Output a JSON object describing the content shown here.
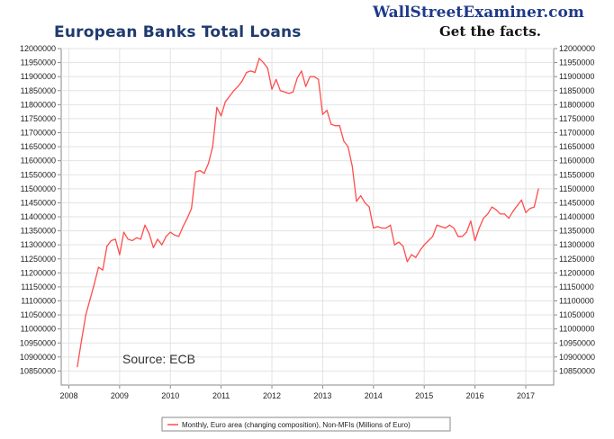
{
  "header": {
    "title": "European Banks Total Loans",
    "brand": "WallStreetExaminer.com",
    "tagline": "Get the facts."
  },
  "colors": {
    "title": "#1f3a6e",
    "series": "#ff4d4d",
    "axis": "#8a8a8a",
    "grid": "#e3e3e3"
  },
  "chart_data": {
    "type": "line",
    "title": "European Banks Total Loans",
    "annotation": "Source: ECB",
    "ylim": [
      10800000,
      12000000
    ],
    "xlim": [
      2007.85,
      2017.55
    ],
    "yticks": [
      10850000,
      10900000,
      10950000,
      11000000,
      11050000,
      11100000,
      11150000,
      11200000,
      11250000,
      11300000,
      11350000,
      11400000,
      11450000,
      11500000,
      11550000,
      11600000,
      11650000,
      11700000,
      11750000,
      11800000,
      11850000,
      11900000,
      11950000,
      12000000
    ],
    "xticks": [
      "2008",
      "2009",
      "2010",
      "2011",
      "2012",
      "2013",
      "2014",
      "2015",
      "2016",
      "2017"
    ],
    "grid": true,
    "legend": "bottom-center",
    "series": [
      {
        "name": "Monthly, Euro area (changing composition), Non-MFIs (Millions of Euro)",
        "x": [
          "2008-03",
          "2008-04",
          "2008-05",
          "2008-06",
          "2008-07",
          "2008-08",
          "2008-09",
          "2008-10",
          "2008-11",
          "2008-12",
          "2009-01",
          "2009-02",
          "2009-03",
          "2009-04",
          "2009-05",
          "2009-06",
          "2009-07",
          "2009-08",
          "2009-09",
          "2009-10",
          "2009-11",
          "2009-12",
          "2010-01",
          "2010-02",
          "2010-03",
          "2010-04",
          "2010-05",
          "2010-06",
          "2010-07",
          "2010-08",
          "2010-09",
          "2010-10",
          "2010-11",
          "2010-12",
          "2011-01",
          "2011-02",
          "2011-03",
          "2011-04",
          "2011-05",
          "2011-06",
          "2011-07",
          "2011-08",
          "2011-09",
          "2011-10",
          "2011-11",
          "2011-12",
          "2012-01",
          "2012-02",
          "2012-03",
          "2012-04",
          "2012-05",
          "2012-06",
          "2012-07",
          "2012-08",
          "2012-09",
          "2012-10",
          "2012-11",
          "2012-12",
          "2013-01",
          "2013-02",
          "2013-03",
          "2013-04",
          "2013-05",
          "2013-06",
          "2013-07",
          "2013-08",
          "2013-09",
          "2013-10",
          "2013-11",
          "2013-12",
          "2014-01",
          "2014-02",
          "2014-03",
          "2014-04",
          "2014-05",
          "2014-06",
          "2014-07",
          "2014-08",
          "2014-09",
          "2014-10",
          "2014-11",
          "2014-12",
          "2015-01",
          "2015-02",
          "2015-03",
          "2015-04",
          "2015-05",
          "2015-06",
          "2015-07",
          "2015-08",
          "2015-09",
          "2015-10",
          "2015-11",
          "2015-12",
          "2016-01",
          "2016-02",
          "2016-03",
          "2016-04",
          "2016-05",
          "2016-06",
          "2016-07",
          "2016-08",
          "2016-09",
          "2016-10",
          "2016-11",
          "2016-12",
          "2017-01",
          "2017-02",
          "2017-03",
          "2017-04"
        ],
        "values": [
          10865000,
          10960000,
          11050000,
          11105000,
          11160000,
          11220000,
          11210000,
          11295000,
          11315000,
          11320000,
          11265000,
          11345000,
          11320000,
          11315000,
          11325000,
          11320000,
          11370000,
          11340000,
          11290000,
          11320000,
          11300000,
          11330000,
          11345000,
          11335000,
          11330000,
          11365000,
          11395000,
          11430000,
          11560000,
          11565000,
          11555000,
          11590000,
          11650000,
          11790000,
          11760000,
          11810000,
          11830000,
          11850000,
          11865000,
          11885000,
          11915000,
          11920000,
          11915000,
          11965000,
          11950000,
          11930000,
          11855000,
          11890000,
          11850000,
          11845000,
          11840000,
          11845000,
          11895000,
          11920000,
          11865000,
          11900000,
          11900000,
          11890000,
          11765000,
          11780000,
          11730000,
          11725000,
          11725000,
          11670000,
          11650000,
          11580000,
          11455000,
          11475000,
          11450000,
          11435000,
          11360000,
          11365000,
          11360000,
          11360000,
          11370000,
          11300000,
          11310000,
          11295000,
          11240000,
          11265000,
          11255000,
          11280000,
          11300000,
          11315000,
          11330000,
          11370000,
          11365000,
          11360000,
          11370000,
          11360000,
          11330000,
          11330000,
          11345000,
          11385000,
          11315000,
          11360000,
          11395000,
          11410000,
          11435000,
          11425000,
          11410000,
          11410000,
          11395000,
          11420000,
          11440000,
          11460000,
          11415000,
          11430000,
          11435000,
          11500000
        ]
      }
    ]
  }
}
